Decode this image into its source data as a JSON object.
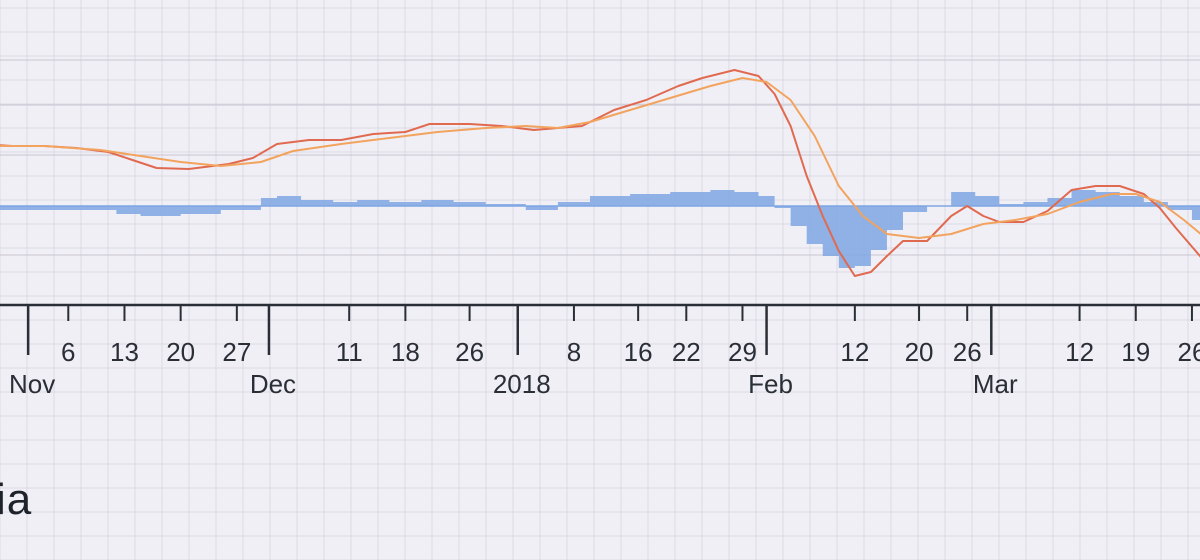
{
  "brand": {
    "text": "ia"
  },
  "colors": {
    "background": "#f1eff6",
    "grid_major": "#c9c6d2",
    "grid_minor": "#dcd9e3",
    "histogram": "#7ea6e3",
    "fast_line": "#e06a4f",
    "slow_line": "#f2a35e",
    "axis": "#2a2f37"
  },
  "chart_data": {
    "type": "line",
    "title": "",
    "xlabel": "",
    "ylabel": "",
    "x_type": "date",
    "xlim": [
      "2017-10-26",
      "2018-03-28"
    ],
    "ylim": [
      -1.0,
      1.6
    ],
    "grid": true,
    "legend": "none",
    "x_tick_labels": [
      {
        "date": "2017-11-06",
        "label": "6"
      },
      {
        "date": "2017-11-13",
        "label": "13"
      },
      {
        "date": "2017-11-20",
        "label": "20"
      },
      {
        "date": "2017-11-27",
        "label": "27"
      },
      {
        "date": "2017-12-11",
        "label": "11"
      },
      {
        "date": "2017-12-18",
        "label": "18"
      },
      {
        "date": "2017-12-26",
        "label": "26"
      },
      {
        "date": "2018-01-08",
        "label": "8"
      },
      {
        "date": "2018-01-16",
        "label": "16"
      },
      {
        "date": "2018-01-22",
        "label": "22"
      },
      {
        "date": "2018-01-29",
        "label": "29"
      },
      {
        "date": "2018-02-12",
        "label": "12"
      },
      {
        "date": "2018-02-20",
        "label": "20"
      },
      {
        "date": "2018-02-26",
        "label": "26"
      },
      {
        "date": "2018-03-12",
        "label": "12"
      },
      {
        "date": "2018-03-19",
        "label": "19"
      },
      {
        "date": "2018-03-26",
        "label": "26"
      }
    ],
    "x_major_ticks": [
      {
        "date": "2017-11-01",
        "label": "Nov"
      },
      {
        "date": "2017-12-01",
        "label": "Dec"
      },
      {
        "date": "2018-01-01",
        "label": "2018"
      },
      {
        "date": "2018-02-01",
        "label": "Feb"
      },
      {
        "date": "2018-03-01",
        "label": "Mar"
      }
    ],
    "series": [
      {
        "kind": "line",
        "color": "#e06a4f",
        "points": [
          [
            "2017-10-26",
            0.62
          ],
          [
            "2017-10-30",
            0.6
          ],
          [
            "2017-11-03",
            0.6
          ],
          [
            "2017-11-07",
            0.58
          ],
          [
            "2017-11-11",
            0.54
          ],
          [
            "2017-11-14",
            0.46
          ],
          [
            "2017-11-17",
            0.38
          ],
          [
            "2017-11-21",
            0.37
          ],
          [
            "2017-11-26",
            0.42
          ],
          [
            "2017-11-29",
            0.48
          ],
          [
            "2017-12-02",
            0.62
          ],
          [
            "2017-12-06",
            0.66
          ],
          [
            "2017-12-10",
            0.66
          ],
          [
            "2017-12-14",
            0.72
          ],
          [
            "2017-12-18",
            0.74
          ],
          [
            "2017-12-21",
            0.82
          ],
          [
            "2017-12-26",
            0.82
          ],
          [
            "2017-12-30",
            0.8
          ],
          [
            "2018-01-03",
            0.76
          ],
          [
            "2018-01-06",
            0.78
          ],
          [
            "2018-01-09",
            0.8
          ],
          [
            "2018-01-13",
            0.96
          ],
          [
            "2018-01-17",
            1.06
          ],
          [
            "2018-01-21",
            1.2
          ],
          [
            "2018-01-24",
            1.28
          ],
          [
            "2018-01-28",
            1.36
          ],
          [
            "2018-01-31",
            1.3
          ],
          [
            "2018-02-02",
            1.12
          ],
          [
            "2018-02-04",
            0.8
          ],
          [
            "2018-02-06",
            0.3
          ],
          [
            "2018-02-08",
            -0.1
          ],
          [
            "2018-02-10",
            -0.45
          ],
          [
            "2018-02-12",
            -0.7
          ],
          [
            "2018-02-14",
            -0.66
          ],
          [
            "2018-02-16",
            -0.5
          ],
          [
            "2018-02-18",
            -0.35
          ],
          [
            "2018-02-21",
            -0.35
          ],
          [
            "2018-02-24",
            -0.1
          ],
          [
            "2018-02-26",
            0.0
          ],
          [
            "2018-02-28",
            -0.1
          ],
          [
            "2018-03-02",
            -0.16
          ],
          [
            "2018-03-05",
            -0.16
          ],
          [
            "2018-03-08",
            -0.05
          ],
          [
            "2018-03-11",
            0.16
          ],
          [
            "2018-03-14",
            0.2
          ],
          [
            "2018-03-17",
            0.2
          ],
          [
            "2018-03-20",
            0.12
          ],
          [
            "2018-03-22",
            -0.02
          ],
          [
            "2018-03-24",
            -0.22
          ],
          [
            "2018-03-27",
            -0.5
          ],
          [
            "2018-03-28",
            -0.62
          ]
        ]
      },
      {
        "kind": "line",
        "color": "#f2a35e",
        "points": [
          [
            "2017-10-26",
            0.6
          ],
          [
            "2017-11-03",
            0.6
          ],
          [
            "2017-11-10",
            0.56
          ],
          [
            "2017-11-15",
            0.5
          ],
          [
            "2017-11-20",
            0.44
          ],
          [
            "2017-11-25",
            0.4
          ],
          [
            "2017-11-30",
            0.44
          ],
          [
            "2017-12-04",
            0.55
          ],
          [
            "2017-12-10",
            0.62
          ],
          [
            "2017-12-16",
            0.68
          ],
          [
            "2017-12-22",
            0.74
          ],
          [
            "2017-12-28",
            0.78
          ],
          [
            "2018-01-02",
            0.8
          ],
          [
            "2018-01-06",
            0.78
          ],
          [
            "2018-01-10",
            0.84
          ],
          [
            "2018-01-15",
            0.96
          ],
          [
            "2018-01-20",
            1.08
          ],
          [
            "2018-01-25",
            1.2
          ],
          [
            "2018-01-29",
            1.28
          ],
          [
            "2018-02-01",
            1.24
          ],
          [
            "2018-02-04",
            1.06
          ],
          [
            "2018-02-07",
            0.7
          ],
          [
            "2018-02-10",
            0.2
          ],
          [
            "2018-02-13",
            -0.1
          ],
          [
            "2018-02-16",
            -0.28
          ],
          [
            "2018-02-20",
            -0.32
          ],
          [
            "2018-02-24",
            -0.28
          ],
          [
            "2018-02-28",
            -0.18
          ],
          [
            "2018-03-04",
            -0.14
          ],
          [
            "2018-03-08",
            -0.08
          ],
          [
            "2018-03-12",
            0.04
          ],
          [
            "2018-03-16",
            0.12
          ],
          [
            "2018-03-19",
            0.12
          ],
          [
            "2018-03-22",
            0.04
          ],
          [
            "2018-03-25",
            -0.14
          ],
          [
            "2018-03-28",
            -0.34
          ]
        ]
      },
      {
        "kind": "histogram",
        "color": "#7ea6e3",
        "points": [
          [
            "2017-10-26",
            -0.04
          ],
          [
            "2017-11-05",
            -0.04
          ],
          [
            "2017-11-12",
            -0.08
          ],
          [
            "2017-11-15",
            -0.1
          ],
          [
            "2017-11-20",
            -0.08
          ],
          [
            "2017-11-25",
            -0.04
          ],
          [
            "2017-11-30",
            0.08
          ],
          [
            "2017-12-02",
            0.1
          ],
          [
            "2017-12-05",
            0.06
          ],
          [
            "2017-12-09",
            0.04
          ],
          [
            "2017-12-12",
            0.06
          ],
          [
            "2017-12-16",
            0.04
          ],
          [
            "2017-12-20",
            0.06
          ],
          [
            "2017-12-24",
            0.04
          ],
          [
            "2017-12-28",
            0.02
          ],
          [
            "2018-01-02",
            -0.04
          ],
          [
            "2018-01-06",
            0.04
          ],
          [
            "2018-01-10",
            0.1
          ],
          [
            "2018-01-15",
            0.12
          ],
          [
            "2018-01-20",
            0.14
          ],
          [
            "2018-01-25",
            0.16
          ],
          [
            "2018-01-28",
            0.14
          ],
          [
            "2018-01-31",
            0.1
          ],
          [
            "2018-02-02",
            -0.02
          ],
          [
            "2018-02-04",
            -0.2
          ],
          [
            "2018-02-06",
            -0.38
          ],
          [
            "2018-02-08",
            -0.5
          ],
          [
            "2018-02-10",
            -0.62
          ],
          [
            "2018-02-12",
            -0.6
          ],
          [
            "2018-02-14",
            -0.44
          ],
          [
            "2018-02-16",
            -0.24
          ],
          [
            "2018-02-18",
            -0.06
          ],
          [
            "2018-02-21",
            0.0
          ],
          [
            "2018-02-24",
            0.14
          ],
          [
            "2018-02-27",
            0.1
          ],
          [
            "2018-03-02",
            0.02
          ],
          [
            "2018-03-05",
            0.04
          ],
          [
            "2018-03-08",
            0.08
          ],
          [
            "2018-03-11",
            0.16
          ],
          [
            "2018-03-14",
            0.14
          ],
          [
            "2018-03-17",
            0.1
          ],
          [
            "2018-03-20",
            0.04
          ],
          [
            "2018-03-23",
            -0.04
          ],
          [
            "2018-03-26",
            -0.14
          ],
          [
            "2018-03-28",
            -0.22
          ]
        ]
      }
    ]
  }
}
